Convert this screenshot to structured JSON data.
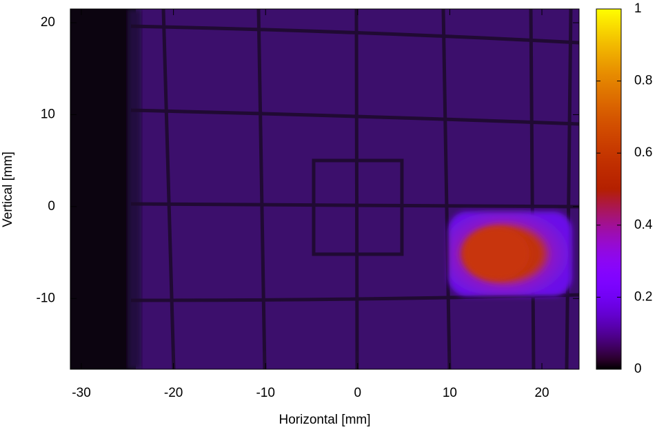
{
  "chart_data": {
    "type": "heatmap",
    "xlabel": "Horizontal [mm]",
    "ylabel": "Vertical [mm]",
    "xlim": [
      -31.2,
      24.04
    ],
    "xticks": [
      -30,
      -20,
      -10,
      0,
      10,
      20
    ],
    "ylim": [
      -17.7,
      21.5
    ],
    "yticks": [
      -10,
      0,
      10,
      20
    ],
    "clim": [
      0,
      1
    ],
    "cticks": [
      0,
      0.2,
      0.4,
      0.6,
      0.8,
      1
    ]
  }
}
